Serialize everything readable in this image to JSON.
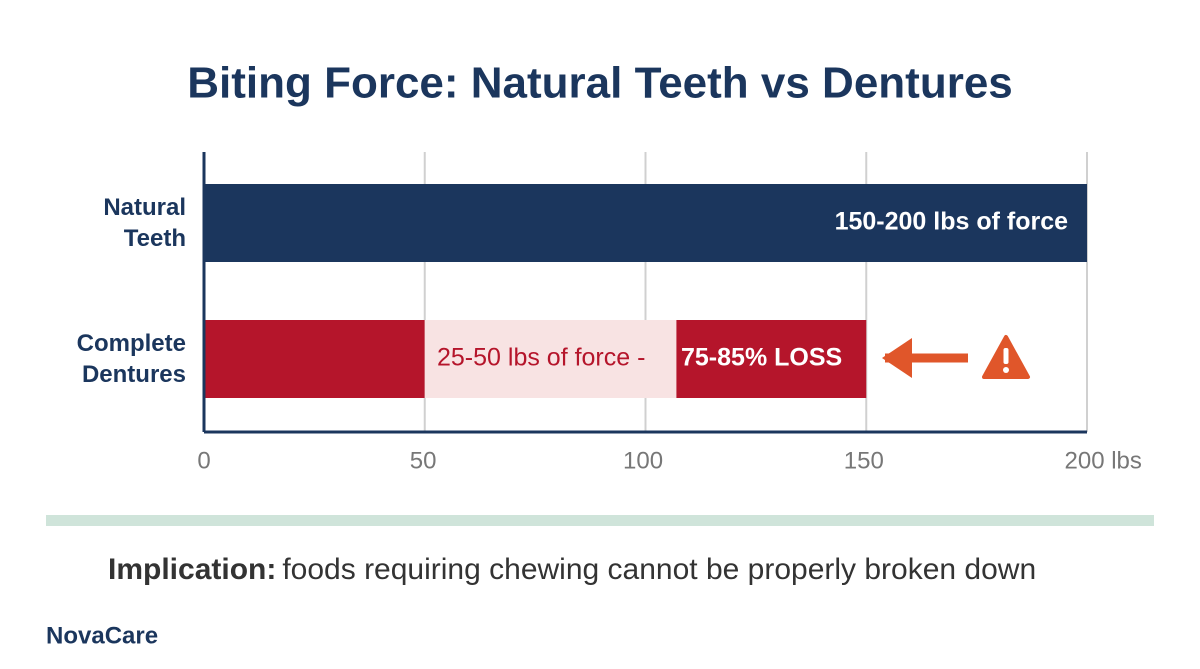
{
  "chart_data": {
    "type": "bar",
    "orientation": "horizontal",
    "title": "Biting Force: Natural Teeth vs Dentures",
    "categories": [
      "Natural Teeth",
      "Complete Dentures"
    ],
    "series": [
      {
        "color": "#1b365d",
        "values": [
          200,
          null
        ]
      },
      {
        "color": "#b5152b",
        "values": [
          null,
          50
        ]
      }
    ],
    "highlights": [
      {
        "start": 50,
        "end": 107,
        "color": "#f8e3e3"
      },
      {
        "start": 107,
        "end": 150,
        "color": "#b5152b"
      }
    ],
    "annotations": [
      "150-200 lbs of force",
      "25-50 lbs of force -",
      "75-85% LOSS"
    ],
    "xlim": [
      0,
      200
    ],
    "xticks": [
      0,
      50,
      100,
      150,
      {
        "value": 200,
        "label": "200 lbs"
      }
    ],
    "grid": true
  },
  "footer": {
    "implication_label": "Implication:",
    "implication_text": "foods requiring chewing cannot be properly broken down",
    "brand": "NovaCare"
  }
}
